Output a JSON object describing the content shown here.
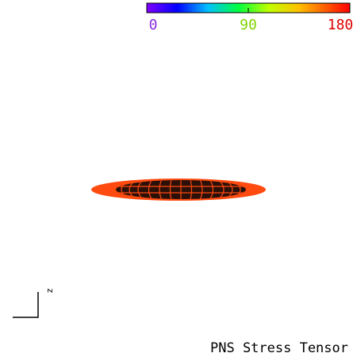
{
  "colorbar": {
    "ticks": [
      0,
      90,
      180
    ],
    "tick_colors": [
      "#8a2be2",
      "#7fd400",
      "#e00000"
    ]
  },
  "axis_label": "z",
  "title": "PNS Stress Tensor"
}
